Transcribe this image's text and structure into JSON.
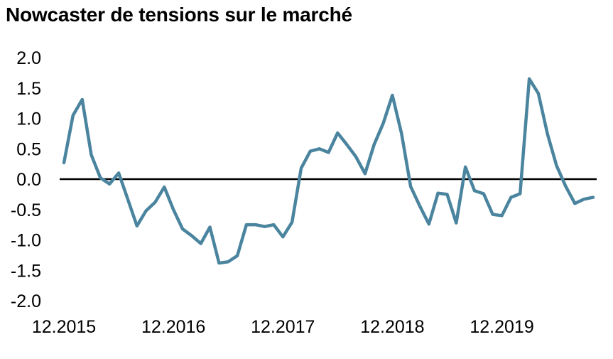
{
  "chart_data": {
    "type": "line",
    "title": "Nowcaster de tensions sur le marché",
    "xlabel": "",
    "ylabel": "",
    "ylim": [
      -2.0,
      2.0
    ],
    "yticks": [
      "2.0",
      "1.5",
      "1.0",
      "0.5",
      "0.0",
      "-0.5",
      "-1.0",
      "-1.5",
      "-2.0"
    ],
    "yticks_values": [
      2.0,
      1.5,
      1.0,
      0.5,
      0.0,
      -0.5,
      -1.0,
      -1.5,
      -2.0
    ],
    "xticks": [
      "12.2015",
      "12.2016",
      "12.2017",
      "12.2018",
      "12.2019"
    ],
    "xticks_index": [
      0,
      12,
      24,
      36,
      48
    ],
    "grid": false,
    "reference_line": 0.0,
    "colors": {
      "series": "#4a849e",
      "zero_line": "#000000"
    },
    "series": [
      {
        "values": [
          0.27,
          1.05,
          1.31,
          0.4,
          0.02,
          -0.08,
          0.1,
          -0.33,
          -0.77,
          -0.52,
          -0.38,
          -0.13,
          -0.5,
          -0.82,
          -0.93,
          -1.06,
          -0.79,
          -1.38,
          -1.36,
          -1.26,
          -0.75,
          -0.75,
          -0.78,
          -0.75,
          -0.95,
          -0.71,
          0.18,
          0.46,
          0.5,
          0.44,
          0.76,
          0.57,
          0.37,
          0.09,
          0.57,
          0.92,
          1.38,
          0.75,
          -0.12,
          -0.44,
          -0.74,
          -0.23,
          -0.25,
          -0.72,
          0.2,
          -0.19,
          -0.24,
          -0.58,
          -0.6,
          -0.3,
          -0.24,
          1.65,
          1.41,
          0.74,
          0.22,
          -0.12,
          -0.4,
          -0.33,
          -0.3
        ]
      }
    ]
  }
}
